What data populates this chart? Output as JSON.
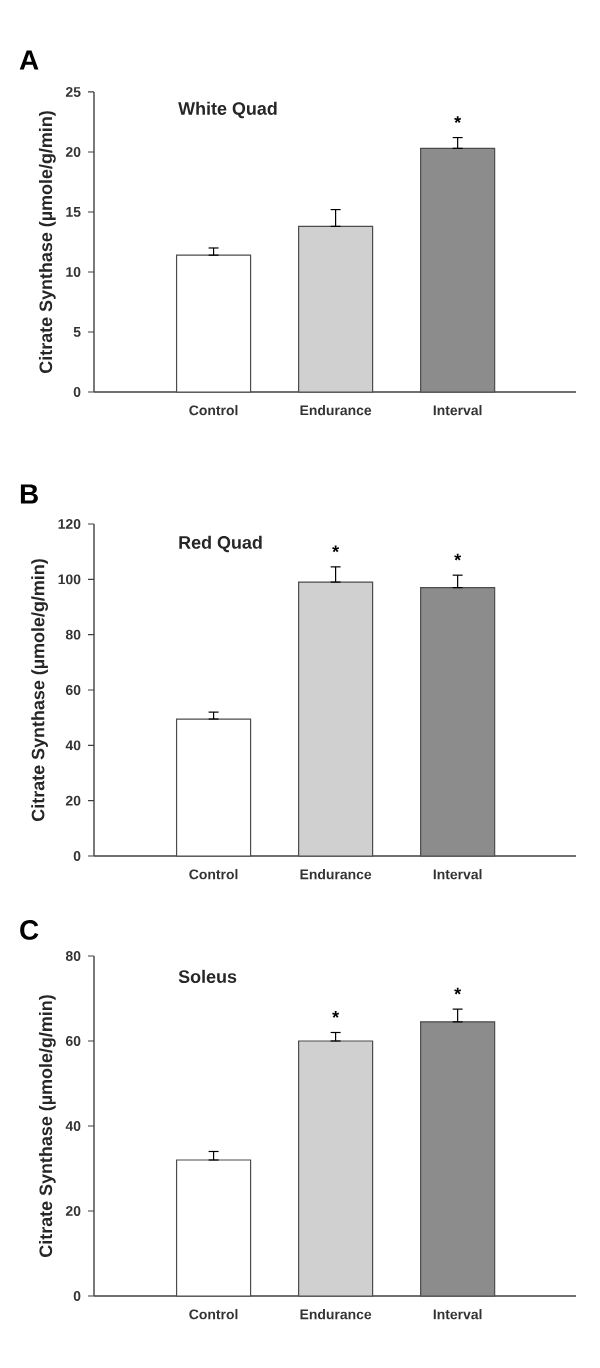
{
  "chart_data": [
    {
      "type": "bar",
      "title": "A",
      "subtitle": "White Quad",
      "ylabel": "Citrate Synthase (µmole/g/min)",
      "categories": [
        "Control",
        "Endurance",
        "Interval"
      ],
      "values": [
        11.4,
        13.8,
        20.3
      ],
      "colors": [
        "#ffffff",
        "#d0d0d0",
        "#8c8c8c"
      ],
      "errors": [
        [
          11.4,
          12.0
        ],
        [
          13.8,
          15.2
        ],
        [
          20.3,
          21.2
        ]
      ],
      "ylim": [
        0,
        25
      ],
      "yticks": [
        0,
        5,
        10,
        15,
        20,
        25
      ],
      "annotations": [
        {
          "text": "*",
          "x": "Interval",
          "y": 20.3
        }
      ]
    },
    {
      "type": "bar",
      "title": "B",
      "subtitle": "Red Quad",
      "ylabel": "Citrate Synthase (µmole/g/min)",
      "categories": [
        "Control",
        "Endurance",
        "Interval"
      ],
      "values": [
        49.5,
        99,
        97
      ],
      "colors": [
        "#ffffff",
        "#d0d0d0",
        "#8c8c8c"
      ],
      "errors": [
        [
          49.5,
          52
        ],
        [
          99,
          104.5
        ],
        [
          97,
          101.5
        ]
      ],
      "ylim": [
        0,
        120
      ],
      "yticks": [
        0,
        20,
        40,
        60,
        80,
        100,
        120
      ],
      "annotations": [
        {
          "text": "*",
          "x": "Endurance",
          "y": 99
        },
        {
          "text": "*",
          "x": "Interval",
          "y": 97
        }
      ]
    },
    {
      "type": "bar",
      "title": "C",
      "subtitle": "Soleus",
      "ylabel": "Citrate Synthase (µmole/g/min)",
      "categories": [
        "Control",
        "Endurance",
        "Interval"
      ],
      "values": [
        32,
        60,
        64.5
      ],
      "colors": [
        "#ffffff",
        "#d0d0d0",
        "#8c8c8c"
      ],
      "errors": [
        [
          32,
          34
        ],
        [
          60,
          62
        ],
        [
          64.5,
          67.5
        ]
      ],
      "ylim": [
        0,
        80
      ],
      "yticks": [
        0,
        20,
        40,
        60,
        80
      ],
      "annotations": [
        {
          "text": "*",
          "x": "Endurance",
          "y": 60
        },
        {
          "text": "*",
          "x": "Interval",
          "y": 64.5
        }
      ]
    }
  ]
}
